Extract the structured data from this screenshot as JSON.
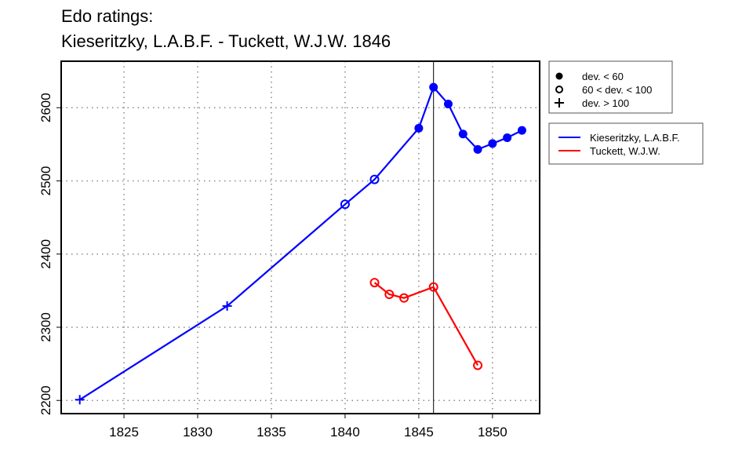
{
  "chart_data": {
    "type": "line",
    "title_line1": "Edo ratings:",
    "title_line2": "Kieseritzky, L.A.B.F. - Tuckett, W.J.W. 1846",
    "xlabel": "",
    "ylabel": "",
    "xlim": [
      1820.74,
      1853.2
    ],
    "ylim": [
      2182,
      2663.5
    ],
    "xticks": [
      1825,
      1830,
      1835,
      1840,
      1845,
      1850
    ],
    "yticks": [
      2200,
      2300,
      2400,
      2500,
      2600
    ],
    "grid": true,
    "vline_x": 1846,
    "marker_legend": {
      "placement": "right-top",
      "items": [
        {
          "marker": "filled-circle",
          "label": "dev. < 60"
        },
        {
          "marker": "open-circle",
          "label": "60 < dev. < 100"
        },
        {
          "marker": "plus",
          "label": "dev. > 100"
        }
      ]
    },
    "series": [
      {
        "name": "Kieseritzky, L.A.B.F.",
        "color": "#0000ff",
        "points": [
          {
            "x": 1822,
            "y": 2201,
            "marker": "plus"
          },
          {
            "x": 1832,
            "y": 2329,
            "marker": "plus"
          },
          {
            "x": 1840,
            "y": 2468,
            "marker": "open-circle"
          },
          {
            "x": 1842,
            "y": 2502,
            "marker": "open-circle"
          },
          {
            "x": 1845,
            "y": 2572,
            "marker": "filled-circle"
          },
          {
            "x": 1846,
            "y": 2628,
            "marker": "filled-circle"
          },
          {
            "x": 1847,
            "y": 2605,
            "marker": "filled-circle"
          },
          {
            "x": 1848,
            "y": 2564,
            "marker": "filled-circle"
          },
          {
            "x": 1849,
            "y": 2543,
            "marker": "filled-circle"
          },
          {
            "x": 1850,
            "y": 2551,
            "marker": "filled-circle"
          },
          {
            "x": 1851,
            "y": 2559,
            "marker": "filled-circle"
          },
          {
            "x": 1852,
            "y": 2569,
            "marker": "filled-circle"
          }
        ]
      },
      {
        "name": "Tuckett, W.J.W.",
        "color": "#ff0000",
        "points": [
          {
            "x": 1842,
            "y": 2361,
            "marker": "open-circle"
          },
          {
            "x": 1843,
            "y": 2345,
            "marker": "open-circle"
          },
          {
            "x": 1844,
            "y": 2340,
            "marker": "open-circle"
          },
          {
            "x": 1846,
            "y": 2355,
            "marker": "open-circle"
          },
          {
            "x": 1849,
            "y": 2248,
            "marker": "open-circle"
          }
        ]
      }
    ]
  }
}
